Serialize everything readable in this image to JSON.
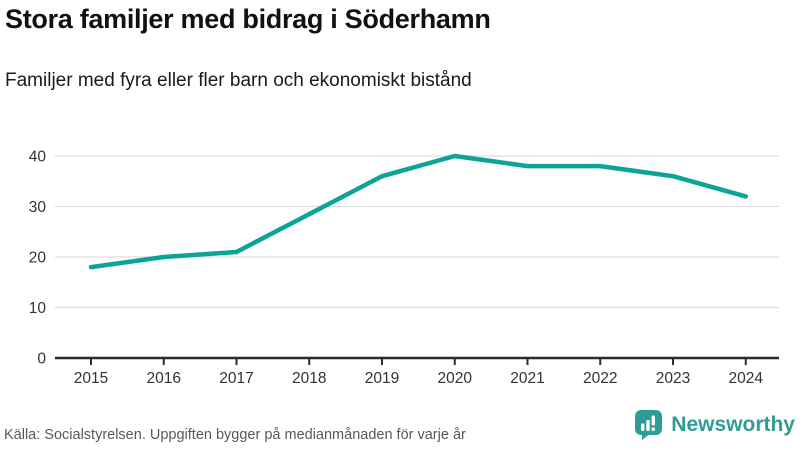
{
  "header": {
    "title": "Stora familjer med bidrag i Söderhamn",
    "subtitle": "Familjer med fyra eller fler barn och ekonomiskt bistånd"
  },
  "footer": {
    "source": "Källa: Socialstyrelsen. Uppgiften bygger på medianmånaden för varje år"
  },
  "branding": {
    "name": "Newsworthy",
    "icon": "bar-chart-speech-bubble-icon",
    "color": "#2f9c98"
  },
  "chart_data": {
    "type": "line",
    "title": "Stora familjer med bidrag i Söderhamn",
    "subtitle": "Familjer med fyra eller fler barn och ekonomiskt bistånd",
    "categories": [
      "2015",
      "2016",
      "2017",
      "2018",
      "2019",
      "2020",
      "2021",
      "2022",
      "2023",
      "2024"
    ],
    "values": [
      18,
      20,
      21,
      28.5,
      36,
      40,
      38,
      38,
      36,
      32
    ],
    "xlabel": "",
    "ylabel": "",
    "ylim": [
      0,
      40
    ],
    "yticks": [
      0,
      10,
      20,
      30,
      40
    ],
    "grid": "horizontal",
    "legend": "none",
    "colors": {
      "line": "#0ca496",
      "gridline": "#dddddd",
      "axis": "#2b2b2b",
      "tick_label": "#333333"
    }
  }
}
